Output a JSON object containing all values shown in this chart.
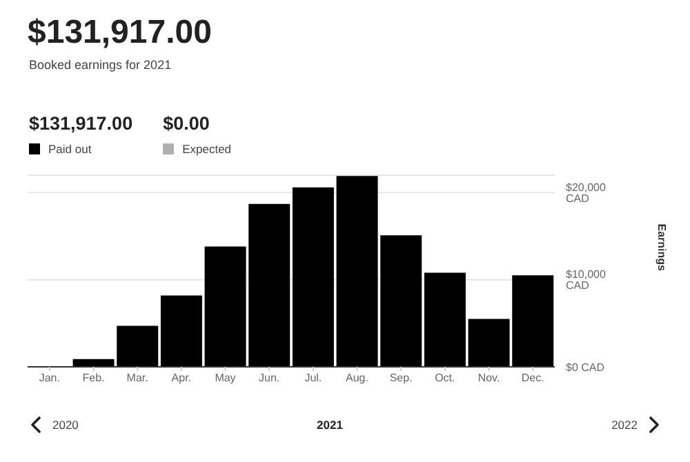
{
  "chart_data": {
    "type": "bar",
    "title": "$131,917.00",
    "subtitle": "Booked earnings for 2021",
    "xlabel": "2021",
    "ylabel": "Earnings",
    "categories": [
      "Jan.",
      "Feb.",
      "Mar.",
      "Apr.",
      "May",
      "Jun.",
      "Jul.",
      "Aug.",
      "Sep.",
      "Oct.",
      "Nov.",
      "Dec."
    ],
    "series": [
      {
        "name": "Paid out",
        "color": "#000000",
        "values": [
          0,
          900,
          4700,
          8200,
          13800,
          18700,
          20600,
          21900,
          15100,
          10800,
          5500,
          10500
        ]
      },
      {
        "name": "Expected",
        "color": "#b0b0b0",
        "values": [
          0,
          0,
          0,
          0,
          0,
          0,
          0,
          0,
          0,
          0,
          0,
          0
        ]
      }
    ],
    "stacked": true,
    "ylim": [
      0,
      22000
    ],
    "yticks": [
      {
        "value": 0,
        "label": "$0 CAD"
      },
      {
        "value": 10000,
        "label": "$10,000 CAD"
      },
      {
        "value": 20000,
        "label": "$20,000 CAD"
      }
    ],
    "grid": "y",
    "legend": "top left",
    "annotations": [
      "$131,917.00",
      "$0.00",
      "2020",
      "2022"
    ]
  }
}
